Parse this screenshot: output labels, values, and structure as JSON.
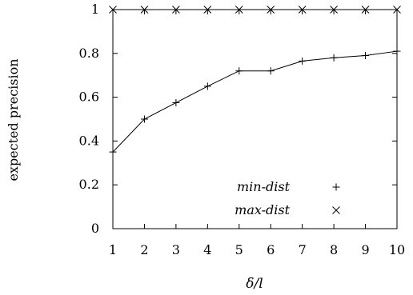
{
  "chart_data": {
    "type": "line",
    "xlabel": "δ/l",
    "ylabel": "expected precision",
    "xlim": [
      1,
      10
    ],
    "ylim": [
      0,
      1
    ],
    "x_ticks": [
      1,
      2,
      3,
      4,
      5,
      6,
      7,
      8,
      9,
      10
    ],
    "y_ticks": [
      0,
      0.2,
      0.4,
      0.6,
      0.8,
      1
    ],
    "y_tick_labels": [
      "0",
      "0.2",
      "0.4",
      "0.6",
      "0.8",
      "1"
    ],
    "x": [
      1,
      2,
      3,
      4,
      5,
      6,
      7,
      8,
      9,
      10
    ],
    "grid": false,
    "legend_position": "bottom-right",
    "series": [
      {
        "name": "min-dist",
        "marker": "plus",
        "values": [
          0.35,
          0.5,
          0.575,
          0.65,
          0.72,
          0.72,
          0.765,
          0.78,
          0.79,
          0.81
        ]
      },
      {
        "name": "max-dist",
        "marker": "cross",
        "values": [
          1,
          1,
          1,
          1,
          1,
          1,
          1,
          1,
          1,
          1
        ]
      }
    ]
  }
}
